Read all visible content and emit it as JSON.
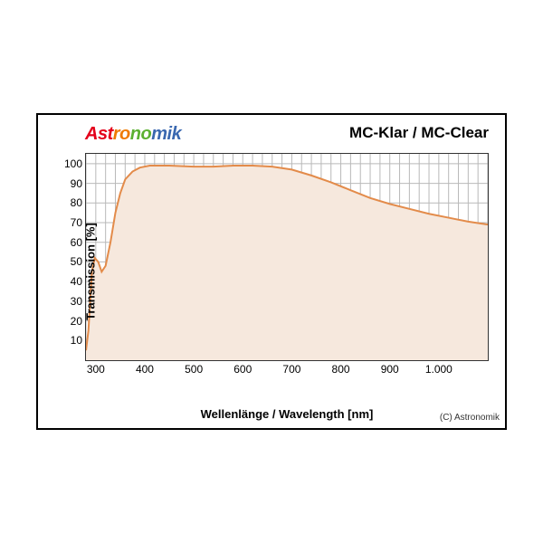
{
  "brand": {
    "text": "Astronomik",
    "letter_colors": [
      "#e4001b",
      "#e4001b",
      "#e4001b",
      "#ef7a00",
      "#ef7a00",
      "#5bb030",
      "#5bb030",
      "#3a68b0",
      "#3a68b0",
      "#3a68b0",
      "#3a68b0"
    ]
  },
  "chart": {
    "type": "area",
    "title_right": "MC-Klar / MC-Clear",
    "ylabel": "Transmission [%]",
    "xlabel": "Wellenlänge / Wavelength [nm]",
    "copyright": "(C) Astronomik",
    "xlim": [
      280,
      1100
    ],
    "ylim": [
      0,
      105
    ],
    "xticks": [
      300,
      400,
      500,
      600,
      700,
      800,
      900,
      1000
    ],
    "xtick_labels": [
      "300",
      "400",
      "500",
      "600",
      "700",
      "800",
      "900",
      "1.000"
    ],
    "yticks": [
      10,
      20,
      30,
      40,
      50,
      60,
      70,
      80,
      90,
      100
    ],
    "minor_x_step": 20,
    "minor_y_step": 10,
    "line_color": "#e38b4a",
    "fill_color": "#f6e8dd",
    "grid_color": "#b9b9b9",
    "border_color": "#333333",
    "background_color": "#ffffff",
    "line_width": 2,
    "data": [
      [
        280,
        5
      ],
      [
        285,
        15
      ],
      [
        292,
        45
      ],
      [
        298,
        52
      ],
      [
        305,
        50
      ],
      [
        312,
        45
      ],
      [
        320,
        48
      ],
      [
        330,
        60
      ],
      [
        340,
        75
      ],
      [
        350,
        85
      ],
      [
        360,
        92
      ],
      [
        375,
        96
      ],
      [
        390,
        98
      ],
      [
        410,
        99
      ],
      [
        450,
        99
      ],
      [
        500,
        98.5
      ],
      [
        540,
        98.5
      ],
      [
        580,
        99
      ],
      [
        620,
        99
      ],
      [
        660,
        98.5
      ],
      [
        700,
        97
      ],
      [
        740,
        94
      ],
      [
        780,
        90.5
      ],
      [
        820,
        86.5
      ],
      [
        860,
        82.5
      ],
      [
        900,
        79.5
      ],
      [
        940,
        77
      ],
      [
        980,
        74.5
      ],
      [
        1020,
        72.5
      ],
      [
        1060,
        70.5
      ],
      [
        1100,
        69
      ]
    ],
    "title_fontsize": 17,
    "label_fontsize": 13,
    "tick_fontsize": 12
  }
}
